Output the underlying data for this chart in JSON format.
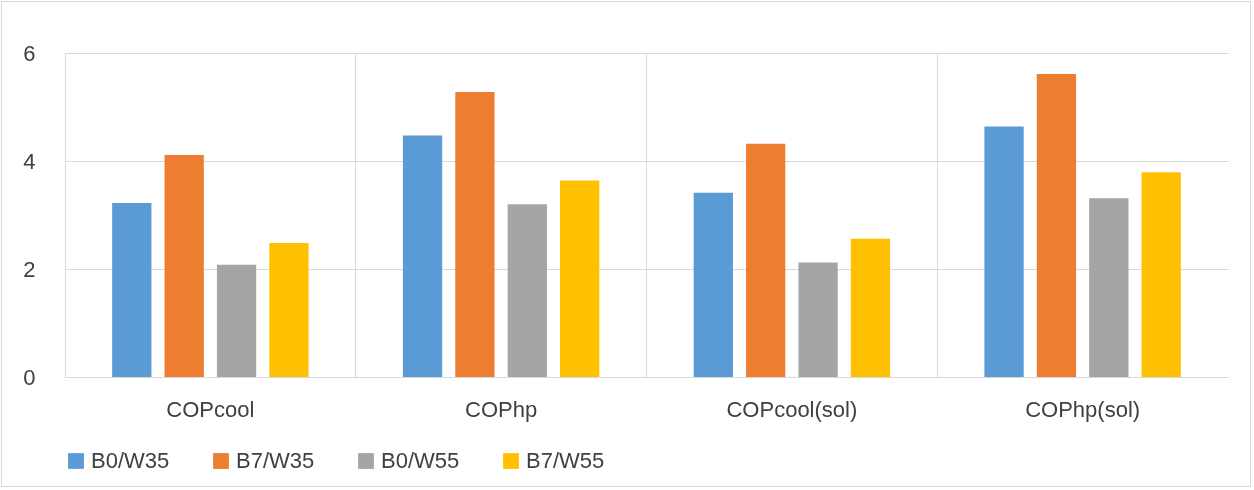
{
  "chart_data": {
    "type": "bar",
    "categories": [
      "COPcool",
      "COPhp",
      "COPcool(sol)",
      "COPhp(sol)"
    ],
    "series": [
      {
        "name": "B0/W35",
        "color": "#5b9bd5",
        "values": [
          3.22,
          4.47,
          3.41,
          4.64
        ]
      },
      {
        "name": "B7/W35",
        "color": "#ed7d31",
        "values": [
          4.11,
          5.28,
          4.32,
          5.61
        ]
      },
      {
        "name": "B0/W55",
        "color": "#a5a5a5",
        "values": [
          2.08,
          3.2,
          2.12,
          3.31
        ]
      },
      {
        "name": "B7/W55",
        "color": "#ffc000",
        "values": [
          2.48,
          3.64,
          2.56,
          3.79
        ]
      }
    ],
    "ylim": [
      0,
      6
    ],
    "yticks": [
      0,
      2,
      4,
      6
    ],
    "grid": true,
    "legend": "bottom"
  }
}
